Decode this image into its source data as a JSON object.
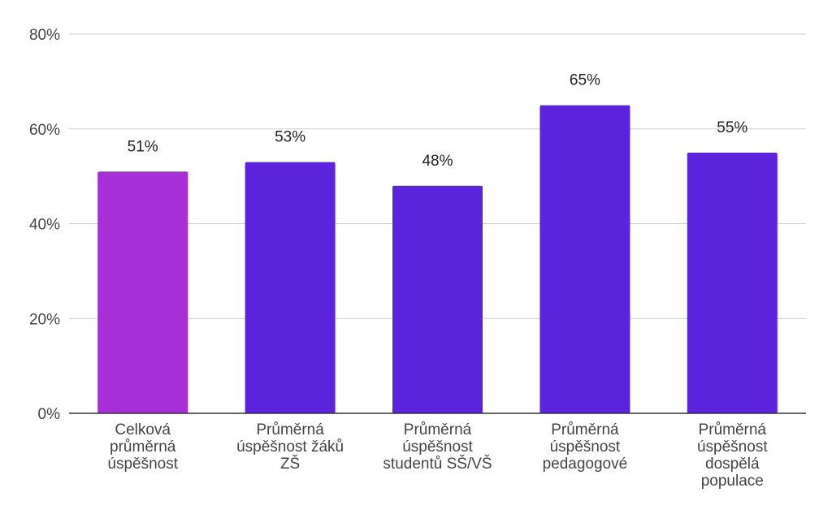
{
  "chart_data": {
    "type": "bar",
    "title": "",
    "xlabel": "",
    "ylabel": "",
    "ylim": [
      0,
      80
    ],
    "yticks": [
      0,
      20,
      40,
      60,
      80
    ],
    "ytick_labels": [
      "0%",
      "20%",
      "40%",
      "60%",
      "80%"
    ],
    "grid": true,
    "categories": [
      [
        "Celková",
        "průměrná",
        "úspěšnost"
      ],
      [
        "Průměrná",
        "úspěšnost žáků",
        "ZŠ"
      ],
      [
        "Průměrná",
        "úspěšnost",
        "studentů SŠ/VŠ"
      ],
      [
        "Průměrná",
        "úspěšnost",
        "pedagogové"
      ],
      [
        "Průměrná",
        "úspěšnost",
        "dospělá",
        "populace"
      ]
    ],
    "values": [
      51,
      53,
      48,
      65,
      55
    ],
    "data_labels": [
      "51%",
      "53%",
      "48%",
      "65%",
      "55%"
    ],
    "bar_colors": [
      "#a72fd7",
      "#5b23db",
      "#5b23db",
      "#5b23db",
      "#5b23db"
    ],
    "grid_color": "#cccccc",
    "axis_color": "#333333"
  }
}
